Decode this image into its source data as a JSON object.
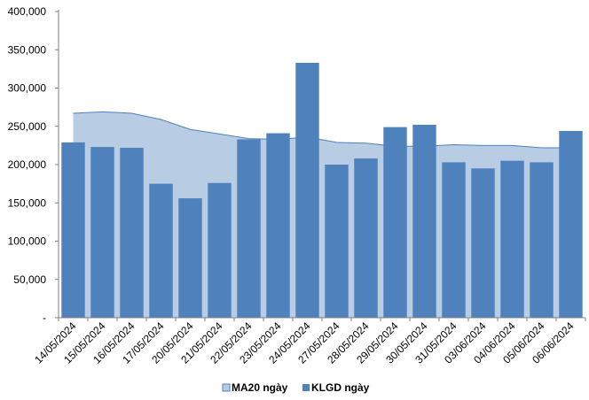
{
  "chart_data": {
    "type": "bar",
    "categories": [
      "14/05/2024",
      "15/05/2024",
      "16/05/2024",
      "17/05/2024",
      "20/05/2024",
      "21/05/2024",
      "22/05/2024",
      "23/05/2024",
      "24/05/2024",
      "27/05/2024",
      "28/05/2024",
      "29/05/2024",
      "30/05/2024",
      "31/05/2024",
      "03/06/2024",
      "04/06/2024",
      "05/06/2024",
      "06/06/2024"
    ],
    "series": [
      {
        "name": "MA20 ngày",
        "type": "area",
        "color": "#b8cce4",
        "line_color": "#4f81bd",
        "values": [
          267000,
          269000,
          267000,
          259000,
          246000,
          240000,
          234000,
          233000,
          236000,
          229000,
          228000,
          224000,
          224000,
          226000,
          225000,
          225000,
          222000,
          222000
        ]
      },
      {
        "name": "KLGD ngày",
        "type": "bar",
        "color": "#4f81bd",
        "values": [
          229000,
          223000,
          222000,
          175000,
          156000,
          176000,
          233000,
          241000,
          333000,
          200000,
          208000,
          249000,
          252000,
          203000,
          195000,
          205000,
          203000,
          244000
        ]
      }
    ],
    "y_ticks": [
      "-",
      "50,000",
      "100,000",
      "150,000",
      "200,000",
      "250,000",
      "300,000",
      "350,000",
      "400,000"
    ],
    "ylim": [
      0,
      400000
    ],
    "grid": false,
    "legend_position": "bottom"
  }
}
